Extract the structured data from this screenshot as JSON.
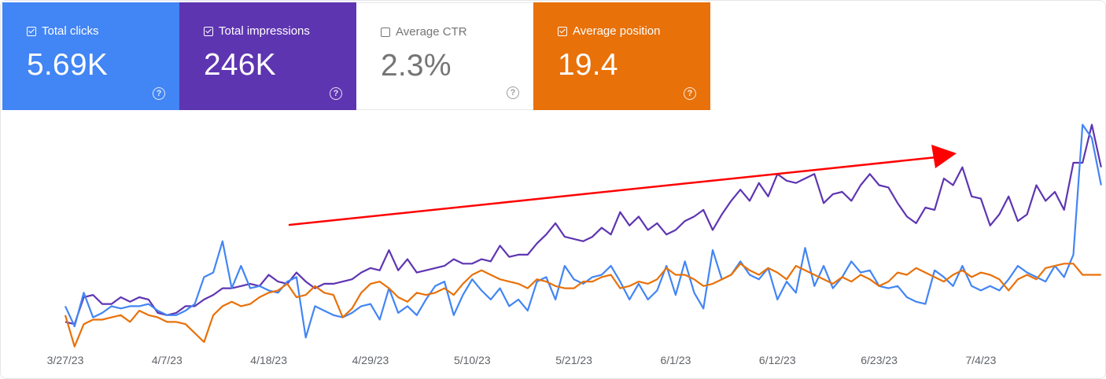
{
  "metrics": [
    {
      "label": "Total clicks",
      "value": "5.69K",
      "checked": true,
      "color": "#4285f4"
    },
    {
      "label": "Total impressions",
      "value": "246K",
      "checked": true,
      "color": "#5e35b1"
    },
    {
      "label": "Average CTR",
      "value": "2.3%",
      "checked": false,
      "color": "#ffffff"
    },
    {
      "label": "Average position",
      "value": "19.4",
      "checked": true,
      "color": "#e8710a"
    }
  ],
  "help_glyph": "?",
  "annotation": {
    "type": "arrow",
    "color": "#ff0000",
    "meaning": "upward trend"
  },
  "chart_data": {
    "type": "line",
    "x_tick_labels": [
      "3/27/23",
      "4/7/23",
      "4/18/23",
      "4/29/23",
      "5/10/23",
      "5/21/23",
      "6/1/23",
      "6/12/23",
      "6/23/23",
      "7/4/23"
    ],
    "x_start_date": "3/27/23",
    "days": 112,
    "grid": false,
    "legend": "metric cards above chart",
    "ylim": [
      0,
      100
    ],
    "series": [
      {
        "name": "Total impressions",
        "color": "#5e35b1",
        "values": [
          9,
          8,
          20,
          21,
          17,
          17,
          20,
          18,
          20,
          19,
          13,
          12,
          13,
          16,
          16,
          19,
          21,
          24,
          24,
          25,
          26,
          25,
          30,
          27,
          26,
          31,
          27,
          24,
          26,
          26,
          27,
          28,
          31,
          33,
          32,
          41,
          32,
          37,
          31,
          32,
          33,
          34,
          37,
          35,
          35,
          37,
          36,
          43,
          38,
          39,
          39,
          44,
          48,
          53,
          47,
          46,
          45,
          47,
          51,
          48,
          58,
          52,
          56,
          50,
          53,
          48,
          50,
          54,
          56,
          59,
          50,
          57,
          63,
          68,
          63,
          71,
          65,
          75,
          72,
          71,
          73,
          75,
          62,
          66,
          67,
          63,
          70,
          75,
          70,
          69,
          62,
          56,
          53,
          60,
          59,
          73,
          70,
          78,
          65,
          64,
          52,
          57,
          65,
          54,
          57,
          70,
          63,
          67,
          59,
          80,
          80,
          97,
          78
        ]
      },
      {
        "name": "Total clicks",
        "color": "#4285f4",
        "values": [
          16,
          7,
          22,
          11,
          13,
          16,
          15,
          16,
          16,
          17,
          14,
          12,
          12,
          14,
          17,
          29,
          31,
          45,
          24,
          34,
          24,
          25,
          23,
          22,
          27,
          29,
          2,
          16,
          14,
          12,
          11,
          13,
          16,
          17,
          10,
          24,
          13,
          16,
          12,
          19,
          25,
          27,
          12,
          21,
          28,
          23,
          19,
          24,
          16,
          19,
          14,
          27,
          29,
          19,
          34,
          28,
          26,
          29,
          30,
          34,
          27,
          19,
          26,
          19,
          23,
          34,
          21,
          36,
          22,
          15,
          41,
          28,
          30,
          36,
          30,
          28,
          33,
          19,
          27,
          22,
          42,
          25,
          34,
          24,
          29,
          36,
          31,
          32,
          25,
          24,
          25,
          20,
          18,
          17,
          32,
          29,
          25,
          34,
          25,
          23,
          25,
          23,
          28,
          34,
          31,
          29,
          27,
          34,
          29,
          39,
          97,
          91,
          70
        ]
      },
      {
        "name": "Average position",
        "color": "#e8710a",
        "values": [
          12,
          -2,
          8,
          10,
          10,
          11,
          12,
          9,
          14,
          12,
          11,
          9,
          9,
          8,
          4,
          0,
          12,
          16,
          18,
          16,
          17,
          20,
          22,
          23,
          26,
          20,
          21,
          25,
          22,
          21,
          11,
          15,
          22,
          26,
          27,
          24,
          20,
          18,
          22,
          21,
          22,
          24,
          21,
          26,
          30,
          32,
          30,
          28,
          27,
          26,
          24,
          28,
          27,
          25,
          24,
          24,
          27,
          27,
          29,
          30,
          24,
          25,
          27,
          26,
          28,
          33,
          30,
          30,
          28,
          25,
          26,
          28,
          30,
          35,
          32,
          30,
          33,
          31,
          28,
          34,
          32,
          30,
          28,
          26,
          29,
          27,
          30,
          28,
          25,
          27,
          31,
          30,
          33,
          31,
          29,
          27,
          30,
          32,
          29,
          31,
          30,
          28,
          23,
          28,
          30,
          28,
          33,
          34,
          35,
          35,
          30,
          30,
          30
        ]
      }
    ]
  }
}
